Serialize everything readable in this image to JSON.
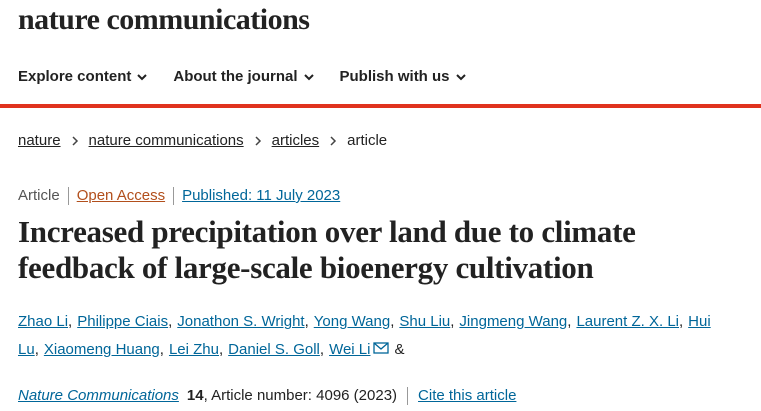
{
  "header": {
    "logo": "nature communications",
    "nav": [
      "Explore content",
      "About the journal",
      "Publish with us"
    ]
  },
  "breadcrumb": [
    "nature",
    "nature communications",
    "articles",
    "article"
  ],
  "meta": {
    "type": "Article",
    "access": "Open Access",
    "published": "Published: 11 July 2023"
  },
  "title": "Increased precipitation over land due to climate feedback of large-scale bioenergy cultivation",
  "authors": [
    "Zhao Li",
    "Philippe Ciais",
    "Jonathon S. Wright",
    "Yong Wang",
    "Shu Liu",
    "Jingmeng Wang",
    "Laurent Z. X. Li",
    "Hui Lu",
    "Xiaomeng Huang",
    "Lei Zhu",
    "Daniel S. Goll",
    "Wei Li"
  ],
  "author_separators": [
    ",",
    ",",
    ",",
    ",",
    ",",
    ",",
    ",",
    ",",
    ",",
    ",",
    ",",
    "&"
  ],
  "citation": {
    "journal": "Nature Communications",
    "volume": "14",
    "details": ", Article number: 4096 (2023)",
    "cite": "Cite this article"
  }
}
